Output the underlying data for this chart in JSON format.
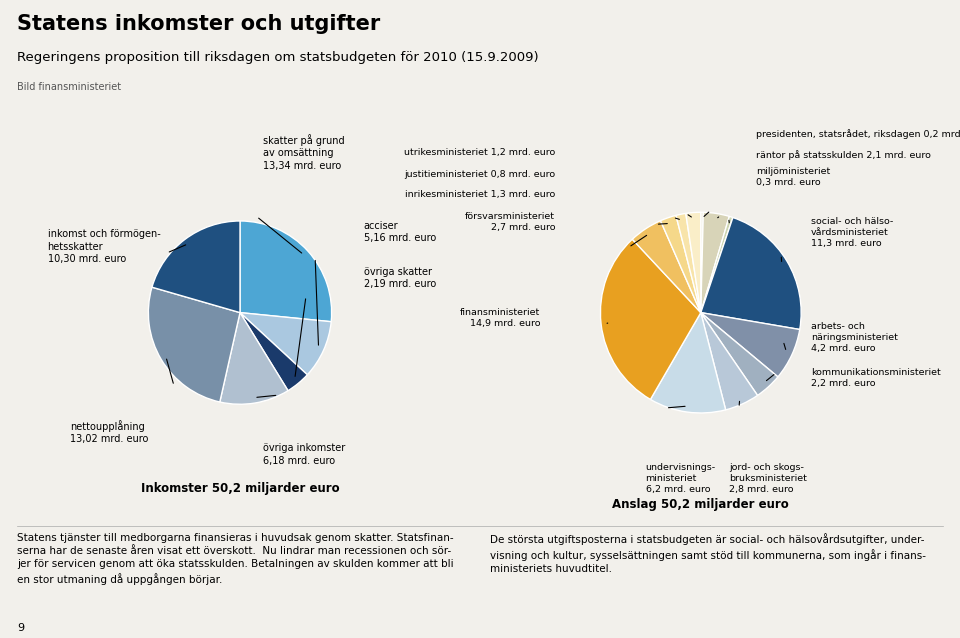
{
  "title": "Statens inkomster och utgifter",
  "subtitle": "Regeringens proposition till riksdagen om statsbudgeten för 2010 (15.9.2009)",
  "credit": "Bild finansministeriet",
  "left_title": "Inkomster 50,2 miljarder euro",
  "right_title": "Anslag 50,2 miljarder euro",
  "left_slices": [
    {
      "label": "skatter på grund\nav omsättning\n13,34 mrd. euro",
      "value": 13.34,
      "color": "#4da6d4"
    },
    {
      "label": "acciser\n5,16 mrd. euro",
      "value": 5.16,
      "color": "#aac8e0"
    },
    {
      "label": "övriga skatter\n2,19 mrd. euro",
      "value": 2.19,
      "color": "#1a3a6b"
    },
    {
      "label": "övriga inkomster\n6,18 mrd. euro",
      "value": 6.18,
      "color": "#b0c0d0"
    },
    {
      "label": "nettoupplåning\n13,02 mrd. euro",
      "value": 13.02,
      "color": "#7890a8"
    },
    {
      "label": "inkomst och förmögen-\nhetsskatter\n10,30 mrd. euro",
      "value": 10.3,
      "color": "#1f5080"
    }
  ],
  "right_slices": [
    {
      "label": "presidenten, statsrådet, riksdagen 0,2 mrd. euro",
      "value": 0.2,
      "color": "#e8e4cc"
    },
    {
      "label": "räntor på statsskulden 2,1 mrd. euro",
      "value": 2.1,
      "color": "#d8d4b8"
    },
    {
      "label": "miljöministeriet\n0,3 mrd. euro",
      "value": 0.3,
      "color": "#ccd4b0"
    },
    {
      "label": "social- och hälso-\nvårdsministeriet\n11,3 mrd. euro",
      "value": 11.3,
      "color": "#1f5080"
    },
    {
      "label": "arbets- och\nnäringsministeriet\n4,2 mrd. euro",
      "value": 4.2,
      "color": "#8090a8"
    },
    {
      "label": "kommunikationsministeriet\n2,2 mrd. euro",
      "value": 2.2,
      "color": "#a0b0c0"
    },
    {
      "label": "jord- och skogs-\nbruksministeriet\n2,8 mrd. euro",
      "value": 2.8,
      "color": "#b8c8d8"
    },
    {
      "label": "undervisnings-\nministeriet\n6,2 mrd. euro",
      "value": 6.2,
      "color": "#c8dce8"
    },
    {
      "label": "finansministeriet\n14,9 mrd. euro",
      "value": 14.9,
      "color": "#e8a020"
    },
    {
      "label": "försvarsministeriet\n2,7 mrd. euro",
      "value": 2.7,
      "color": "#f0c060"
    },
    {
      "label": "inrikesministeriet 1,3 mrd. euro",
      "value": 1.3,
      "color": "#f5d88a"
    },
    {
      "label": "justitieministeriet 0,8 mrd. euro",
      "value": 0.8,
      "color": "#f8e4aa"
    },
    {
      "label": "utrikesministeriet 1,2 mrd. euro",
      "value": 1.2,
      "color": "#faeec8"
    }
  ],
  "bottom_left_text": "Statens tjänster till medborgarna finansieras i huvudsak genom skatter. Statsfinan-\nserna har de senaste åren visat ett överskott.  Nu lindrar man recessionen och sör-\njer för servicen genom att öka statsskulden. Betalningen av skulden kommer att bli\nen stor utmaning då uppgången börjar.",
  "bottom_right_text": "De största utgiftsposterna i statsbudgeten är social- och hälsovårdsutgifter, under-\nvisning och kultur, sysselsättningen samt stöd till kommunerna, som ingår i finans-\nministeriets huvudtitel.",
  "page_number": "9"
}
